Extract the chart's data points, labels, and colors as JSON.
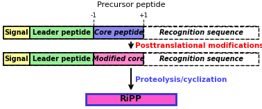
{
  "title": "Precursor peptide",
  "title_fontsize": 8,
  "bg_color": "#f0f0f0",
  "signal_color": "#ffff99",
  "signal_label": "Signal",
  "leader_color": "#99ee99",
  "leader_label": "Leader peptide",
  "core_color": "#8888ee",
  "core_label": "Core peptide",
  "modcore_color": "#ff88cc",
  "modcore_label": "Modified core",
  "recog_color": "#ffffff",
  "recog_label": "Recognition sequence",
  "arrow1_label": "Posttranslational modifications",
  "arrow1_color": "#ff0000",
  "arrow2_label": "Proteolysis/cyclization",
  "arrow2_color": "#4444ff",
  "ripp_label": "RiPP",
  "ripp_fill": "#ff55cc",
  "ripp_border": "#3333cc",
  "segment_fontsize": 7,
  "italic_fontsize": 7,
  "arrow_label_fontsize": 7.5,
  "ripp_fontsize": 9,
  "marker_fontsize": 6.5,
  "minus1_label": "-1",
  "plus1_label": "+1"
}
